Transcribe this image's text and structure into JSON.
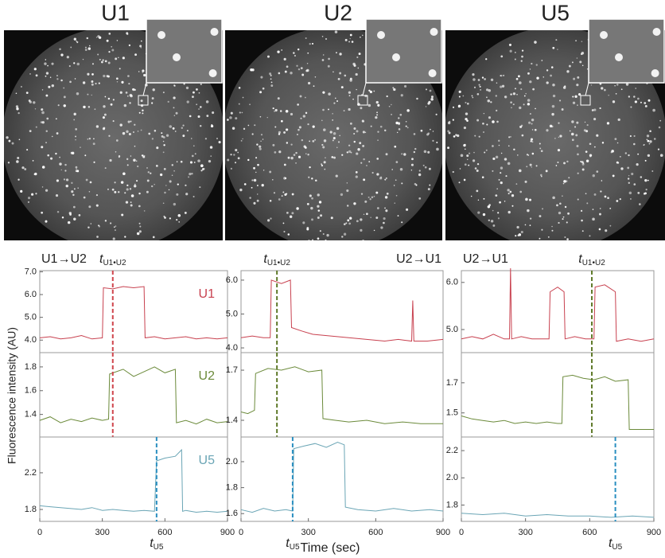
{
  "images": [
    {
      "label": "U1"
    },
    {
      "label": "U2"
    },
    {
      "label": "U5"
    }
  ],
  "y_label": "Fluorescence intensity (AU)",
  "x_label": "Time (sec)",
  "chart_data": [
    {
      "type": "line",
      "title": "U1→U2",
      "xlim": [
        0,
        900
      ],
      "ylim": [
        3.45,
        7.05
      ],
      "yticks": [
        {
          "value": 4,
          "label": "4.0"
        },
        {
          "value": 5,
          "label": "5.0"
        },
        {
          "value": 6,
          "label": "6.0"
        },
        {
          "value": 7,
          "label": "7.0"
        }
      ],
      "vline": {
        "x": 350,
        "color": "#d0454d"
      },
      "vline_label": {
        "text": "t",
        "subscript": "U1•U2"
      },
      "series": [
        {
          "name": "U1",
          "color": "#c8414f",
          "x": [
            0,
            50,
            100,
            150,
            200,
            250,
            300,
            305,
            350,
            400,
            450,
            500,
            505,
            550,
            600,
            650,
            700,
            750,
            800,
            850,
            900
          ],
          "values": [
            4.1,
            4.15,
            4.05,
            4.1,
            4.2,
            4.05,
            4.1,
            6.3,
            6.25,
            6.35,
            6.3,
            6.35,
            4.1,
            4.15,
            4.05,
            4.1,
            4.15,
            4.05,
            4.1,
            4.05,
            4.1
          ]
        }
      ]
    },
    {
      "type": "line",
      "xlim": [
        0,
        900
      ],
      "ylim": [
        1.21,
        1.92
      ],
      "yticks": [
        1.4,
        1.6,
        1.8
      ],
      "vline": {
        "x": 350,
        "color": "#d0454d"
      },
      "series": [
        {
          "name": "U2",
          "color": "#6b8a3a",
          "x": [
            0,
            50,
            100,
            150,
            200,
            250,
            300,
            330,
            335,
            400,
            450,
            500,
            550,
            600,
            650,
            655,
            700,
            750,
            800,
            850,
            900
          ],
          "values": [
            1.35,
            1.38,
            1.33,
            1.36,
            1.34,
            1.37,
            1.35,
            1.36,
            1.74,
            1.78,
            1.72,
            1.76,
            1.8,
            1.75,
            1.78,
            1.33,
            1.35,
            1.32,
            1.36,
            1.33,
            1.34
          ]
        }
      ]
    },
    {
      "type": "line",
      "xlim": [
        0,
        900
      ],
      "ylim": [
        1.67,
        2.59
      ],
      "yticks": [
        1.8,
        2.2
      ],
      "xticks": [
        0,
        300,
        600,
        900
      ],
      "vline": {
        "x": 560,
        "color": "#2a8fc0"
      },
      "vline_label": {
        "text": "t",
        "subscript": "U5"
      },
      "series": [
        {
          "name": "U5",
          "color": "#6aa5b5",
          "x": [
            0,
            50,
            100,
            150,
            200,
            250,
            300,
            350,
            400,
            450,
            500,
            550,
            560,
            600,
            650,
            680,
            685,
            700,
            750,
            800,
            850,
            900
          ],
          "values": [
            1.84,
            1.83,
            1.82,
            1.81,
            1.8,
            1.82,
            1.79,
            1.8,
            1.79,
            1.78,
            1.79,
            1.78,
            2.33,
            2.36,
            2.38,
            2.45,
            1.78,
            1.79,
            1.77,
            1.78,
            1.77,
            1.78
          ]
        }
      ]
    },
    {
      "type": "line",
      "title": "U2→U1",
      "xlim": [
        0,
        900
      ],
      "ylim": [
        3.86,
        6.28
      ],
      "yticks": [
        {
          "value": 4,
          "label": "4.0"
        },
        {
          "value": 5,
          "label": "5.0"
        },
        {
          "value": 6,
          "label": "6.0"
        }
      ],
      "vline": {
        "x": 160,
        "color": "#5f7a2a"
      },
      "vline_label": {
        "text": "t",
        "subscript": "U1•U2"
      },
      "series": [
        {
          "color": "#c8414f",
          "x": [
            0,
            50,
            100,
            130,
            135,
            180,
            220,
            225,
            270,
            320,
            400,
            480,
            560,
            640,
            700,
            760,
            765,
            770,
            830,
            900
          ],
          "values": [
            4.3,
            4.35,
            4.3,
            4.3,
            6.0,
            5.9,
            6.0,
            4.6,
            4.5,
            4.4,
            4.35,
            4.3,
            4.25,
            4.2,
            4.25,
            4.2,
            5.4,
            4.2,
            4.2,
            4.25
          ]
        }
      ]
    },
    {
      "type": "line",
      "xlim": [
        0,
        900
      ],
      "ylim": [
        1.3,
        1.805
      ],
      "yticks": [
        1.4,
        1.7
      ],
      "vline": {
        "x": 160,
        "color": "#5f7a2a"
      },
      "series": [
        {
          "color": "#6b8a3a",
          "x": [
            0,
            30,
            60,
            65,
            120,
            180,
            240,
            300,
            360,
            365,
            420,
            480,
            560,
            640,
            720,
            800,
            900
          ],
          "values": [
            1.45,
            1.44,
            1.46,
            1.68,
            1.71,
            1.7,
            1.72,
            1.69,
            1.7,
            1.41,
            1.4,
            1.39,
            1.4,
            1.38,
            1.39,
            1.38,
            1.38
          ]
        }
      ]
    },
    {
      "type": "line",
      "xlim": [
        0,
        900
      ],
      "ylim": [
        1.54,
        2.19
      ],
      "yticks": [
        1.6,
        1.8,
        {
          "value": 2,
          "label": "2.0"
        }
      ],
      "xticks": [
        0,
        300,
        600,
        900
      ],
      "vline": {
        "x": 230,
        "color": "#2a8fc0"
      },
      "vline_label": {
        "text": "t",
        "subscript": "U5"
      },
      "series": [
        {
          "color": "#6aa5b5",
          "x": [
            0,
            50,
            100,
            150,
            200,
            230,
            235,
            280,
            330,
            380,
            430,
            460,
            465,
            520,
            600,
            680,
            760,
            840,
            900
          ],
          "values": [
            1.63,
            1.61,
            1.64,
            1.62,
            1.63,
            1.62,
            2.1,
            2.12,
            2.14,
            2.11,
            2.15,
            2.13,
            1.65,
            1.63,
            1.62,
            1.64,
            1.62,
            1.63,
            1.62
          ]
        }
      ]
    },
    {
      "type": "line",
      "title": "U2→U1",
      "xlim": [
        0,
        900
      ],
      "ylim": [
        4.51,
        6.25
      ],
      "yticks": [
        {
          "value": 5,
          "label": "5.0"
        },
        {
          "value": 6,
          "label": "6.0"
        }
      ],
      "vline": {
        "x": 610,
        "color": "#5f7a2a"
      },
      "vline_label": {
        "text": "t",
        "subscript": "U1•U2"
      },
      "series": [
        {
          "color": "#c8414f",
          "x": [
            0,
            50,
            100,
            150,
            200,
            225,
            230,
            235,
            280,
            330,
            380,
            410,
            415,
            450,
            480,
            485,
            530,
            580,
            620,
            625,
            670,
            720,
            725,
            780,
            840,
            900
          ],
          "values": [
            4.8,
            4.85,
            4.8,
            4.9,
            4.8,
            4.8,
            6.3,
            4.8,
            4.85,
            4.8,
            4.8,
            4.8,
            5.8,
            5.9,
            5.8,
            4.8,
            4.85,
            4.8,
            4.8,
            5.9,
            5.95,
            5.8,
            4.75,
            4.8,
            4.75,
            4.8
          ]
        }
      ]
    },
    {
      "type": "line",
      "xlim": [
        0,
        900
      ],
      "ylim": [
        1.34,
        1.9
      ],
      "yticks": [
        1.5,
        1.7
      ],
      "vline": {
        "x": 610,
        "color": "#5f7a2a"
      },
      "series": [
        {
          "color": "#6b8a3a",
          "x": [
            0,
            50,
            100,
            150,
            200,
            250,
            300,
            350,
            400,
            450,
            470,
            475,
            520,
            570,
            620,
            670,
            720,
            780,
            785,
            840,
            900
          ],
          "values": [
            1.48,
            1.46,
            1.45,
            1.44,
            1.45,
            1.43,
            1.44,
            1.43,
            1.44,
            1.43,
            1.43,
            1.74,
            1.75,
            1.73,
            1.72,
            1.74,
            1.71,
            1.72,
            1.39,
            1.39,
            1.39
          ]
        }
      ]
    },
    {
      "type": "line",
      "xlim": [
        0,
        900
      ],
      "ylim": [
        1.68,
        2.3
      ],
      "yticks": [
        1.8,
        {
          "value": 2,
          "label": "2.0"
        },
        2.2
      ],
      "xticks": [
        0,
        300,
        600,
        900
      ],
      "vline": {
        "x": 720,
        "color": "#2a8fc0"
      },
      "vline_label": {
        "text": "t",
        "subscript": "U5"
      },
      "series": [
        {
          "color": "#6aa5b5",
          "x": [
            0,
            100,
            200,
            300,
            400,
            500,
            600,
            700,
            800,
            900
          ],
          "values": [
            1.74,
            1.73,
            1.74,
            1.72,
            1.73,
            1.72,
            1.72,
            1.71,
            1.72,
            1.71
          ]
        }
      ]
    }
  ]
}
